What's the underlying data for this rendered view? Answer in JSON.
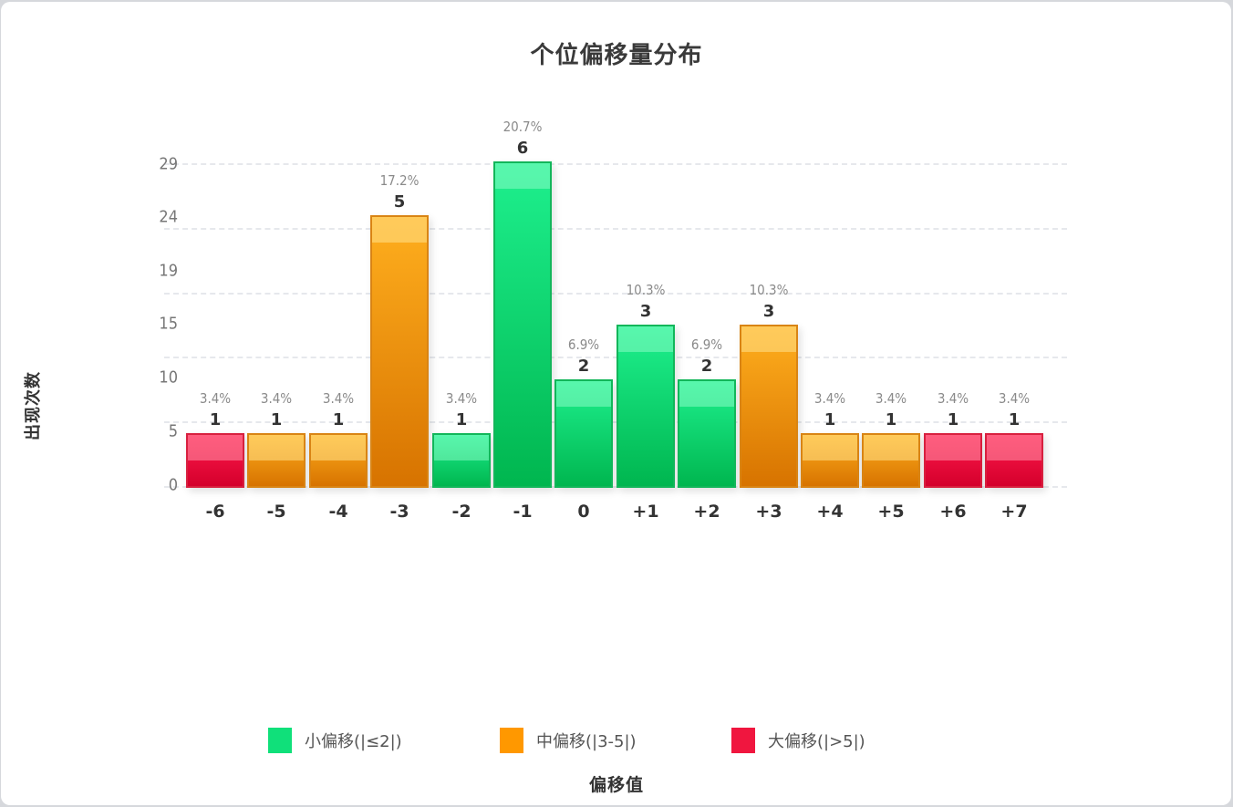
{
  "colors": {
    "small": "#10e07a",
    "medium": "#ff9800",
    "large": "#f0163f"
  },
  "chart_data": {
    "type": "bar",
    "title": "个位偏移量分布",
    "xlabel": "偏移值",
    "ylabel": "出现次数",
    "categories": [
      "-6",
      "-5",
      "-4",
      "-3",
      "-2",
      "-1",
      "0",
      "+1",
      "+2",
      "+3",
      "+4",
      "+5",
      "+6",
      "+7"
    ],
    "values": [
      1,
      1,
      1,
      5,
      1,
      6,
      2,
      3,
      2,
      3,
      1,
      1,
      1,
      1
    ],
    "percentages": [
      "3.4%",
      "3.4%",
      "3.4%",
      "17.2%",
      "3.4%",
      "20.7%",
      "6.9%",
      "10.3%",
      "6.9%",
      "10.3%",
      "3.4%",
      "3.4%",
      "3.4%",
      "3.4%"
    ],
    "groups": [
      "large",
      "medium",
      "medium",
      "medium",
      "small",
      "small",
      "small",
      "small",
      "small",
      "medium",
      "medium",
      "medium",
      "large",
      "large"
    ],
    "yticks": [
      "0",
      "5",
      "10",
      "15",
      "19",
      "24",
      "29"
    ],
    "grid": true,
    "legend_position": "bottom",
    "legend": [
      {
        "key": "small",
        "label": "小偏移(|≤2|)"
      },
      {
        "key": "medium",
        "label": "中偏移(|3-5|)"
      },
      {
        "key": "large",
        "label": "大偏移(|>5|)"
      }
    ]
  }
}
